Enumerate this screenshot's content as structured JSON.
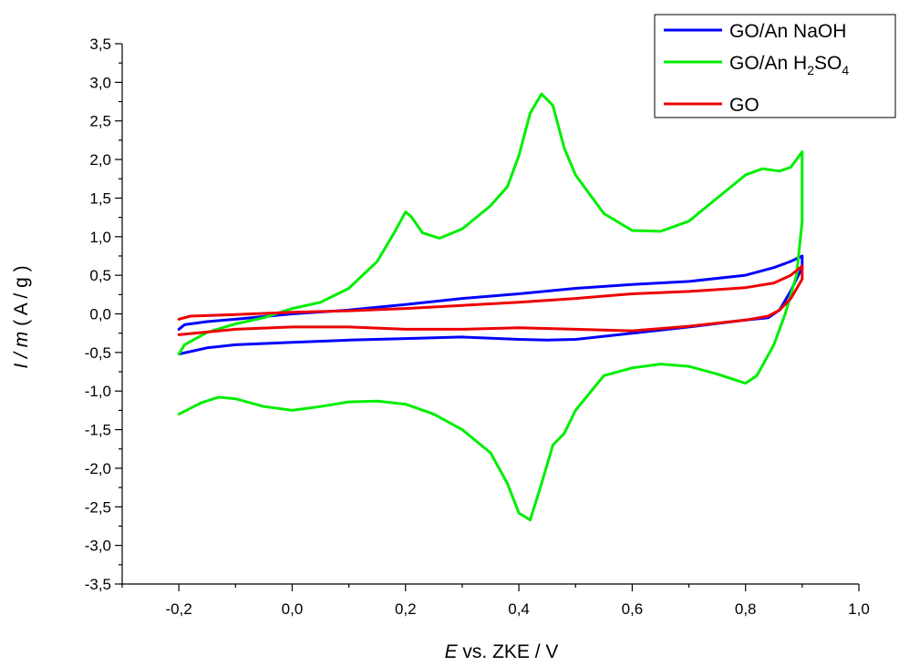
{
  "chart_data": {
    "type": "line",
    "xlabel": {
      "italic": "E",
      "rest": " vs. ZKE / V"
    },
    "ylabel": {
      "italic": "I / m",
      "rest": " ( A / g )"
    },
    "xlim": [
      -0.3,
      1.0
    ],
    "ylim": [
      -3.5,
      3.5
    ],
    "x_ticks": [
      "-0,2",
      "0,0",
      "0,2",
      "0,4",
      "0,6",
      "0,8",
      "1,0"
    ],
    "x_tick_values": [
      -0.2,
      0.0,
      0.2,
      0.4,
      0.6,
      0.8,
      1.0
    ],
    "y_ticks": [
      "3,5",
      "3,0",
      "2,5",
      "2,0",
      "1,5",
      "1,0",
      "0,5",
      "0,0",
      "-0,5",
      "-1,0",
      "-1,5",
      "-2,0",
      "-2,5",
      "-3,0",
      "-3,5"
    ],
    "y_tick_values": [
      3.5,
      3.0,
      2.5,
      2.0,
      1.5,
      1.0,
      0.5,
      0.0,
      -0.5,
      -1.0,
      -1.5,
      -2.0,
      -2.5,
      -3.0,
      -3.5
    ],
    "grid": false,
    "legend_position": "top-right",
    "series": [
      {
        "name": "GO/An NaOH",
        "color": "#0000ff",
        "points": [
          [
            -0.2,
            -0.2
          ],
          [
            -0.19,
            -0.14
          ],
          [
            -0.15,
            -0.1
          ],
          [
            -0.1,
            -0.07
          ],
          [
            0.0,
            0.0
          ],
          [
            0.1,
            0.05
          ],
          [
            0.2,
            0.12
          ],
          [
            0.3,
            0.2
          ],
          [
            0.4,
            0.26
          ],
          [
            0.5,
            0.33
          ],
          [
            0.6,
            0.38
          ],
          [
            0.7,
            0.42
          ],
          [
            0.8,
            0.5
          ],
          [
            0.85,
            0.6
          ],
          [
            0.88,
            0.68
          ],
          [
            0.9,
            0.75
          ],
          [
            0.9,
            0.6
          ],
          [
            0.88,
            0.3
          ],
          [
            0.86,
            0.05
          ],
          [
            0.84,
            -0.05
          ],
          [
            0.8,
            -0.08
          ],
          [
            0.7,
            -0.17
          ],
          [
            0.6,
            -0.25
          ],
          [
            0.5,
            -0.33
          ],
          [
            0.45,
            -0.34
          ],
          [
            0.4,
            -0.33
          ],
          [
            0.3,
            -0.3
          ],
          [
            0.2,
            -0.32
          ],
          [
            0.1,
            -0.34
          ],
          [
            0.0,
            -0.37
          ],
          [
            -0.1,
            -0.4
          ],
          [
            -0.15,
            -0.44
          ],
          [
            -0.2,
            -0.52
          ]
        ]
      },
      {
        "name": "GO/An H2SO4",
        "display_name": {
          "base": "GO/An H",
          "sub1": "2",
          "mid": "SO",
          "sub2": "4"
        },
        "color": "#00ee00",
        "points": [
          [
            -0.2,
            -0.52
          ],
          [
            -0.19,
            -0.4
          ],
          [
            -0.15,
            -0.24
          ],
          [
            -0.1,
            -0.13
          ],
          [
            -0.05,
            -0.05
          ],
          [
            0.0,
            0.07
          ],
          [
            0.05,
            0.15
          ],
          [
            0.1,
            0.33
          ],
          [
            0.15,
            0.68
          ],
          [
            0.18,
            1.05
          ],
          [
            0.2,
            1.32
          ],
          [
            0.21,
            1.26
          ],
          [
            0.23,
            1.05
          ],
          [
            0.26,
            0.98
          ],
          [
            0.3,
            1.1
          ],
          [
            0.35,
            1.4
          ],
          [
            0.38,
            1.65
          ],
          [
            0.4,
            2.05
          ],
          [
            0.42,
            2.6
          ],
          [
            0.44,
            2.85
          ],
          [
            0.46,
            2.7
          ],
          [
            0.48,
            2.15
          ],
          [
            0.5,
            1.8
          ],
          [
            0.55,
            1.3
          ],
          [
            0.6,
            1.08
          ],
          [
            0.65,
            1.07
          ],
          [
            0.7,
            1.2
          ],
          [
            0.75,
            1.5
          ],
          [
            0.8,
            1.8
          ],
          [
            0.83,
            1.88
          ],
          [
            0.86,
            1.85
          ],
          [
            0.88,
            1.9
          ],
          [
            0.9,
            2.1
          ],
          [
            0.9,
            1.2
          ],
          [
            0.89,
            0.5
          ],
          [
            0.87,
            0.0
          ],
          [
            0.85,
            -0.4
          ],
          [
            0.82,
            -0.8
          ],
          [
            0.8,
            -0.9
          ],
          [
            0.75,
            -0.78
          ],
          [
            0.7,
            -0.68
          ],
          [
            0.65,
            -0.65
          ],
          [
            0.6,
            -0.7
          ],
          [
            0.55,
            -0.8
          ],
          [
            0.5,
            -1.25
          ],
          [
            0.48,
            -1.55
          ],
          [
            0.46,
            -1.7
          ],
          [
            0.44,
            -2.2
          ],
          [
            0.42,
            -2.67
          ],
          [
            0.4,
            -2.58
          ],
          [
            0.38,
            -2.2
          ],
          [
            0.35,
            -1.8
          ],
          [
            0.3,
            -1.5
          ],
          [
            0.25,
            -1.3
          ],
          [
            0.2,
            -1.17
          ],
          [
            0.15,
            -1.13
          ],
          [
            0.1,
            -1.14
          ],
          [
            0.05,
            -1.2
          ],
          [
            0.0,
            -1.25
          ],
          [
            -0.05,
            -1.2
          ],
          [
            -0.1,
            -1.1
          ],
          [
            -0.13,
            -1.08
          ],
          [
            -0.16,
            -1.15
          ],
          [
            -0.2,
            -1.3
          ]
        ]
      },
      {
        "name": "GO",
        "color": "#ee0000",
        "points": [
          [
            -0.2,
            -0.07
          ],
          [
            -0.18,
            -0.03
          ],
          [
            -0.1,
            -0.01
          ],
          [
            0.0,
            0.02
          ],
          [
            0.1,
            0.04
          ],
          [
            0.2,
            0.07
          ],
          [
            0.3,
            0.11
          ],
          [
            0.4,
            0.15
          ],
          [
            0.5,
            0.2
          ],
          [
            0.6,
            0.26
          ],
          [
            0.7,
            0.29
          ],
          [
            0.8,
            0.34
          ],
          [
            0.85,
            0.4
          ],
          [
            0.88,
            0.5
          ],
          [
            0.9,
            0.62
          ],
          [
            0.9,
            0.45
          ],
          [
            0.88,
            0.2
          ],
          [
            0.86,
            0.05
          ],
          [
            0.84,
            -0.03
          ],
          [
            0.8,
            -0.08
          ],
          [
            0.7,
            -0.16
          ],
          [
            0.6,
            -0.22
          ],
          [
            0.5,
            -0.2
          ],
          [
            0.4,
            -0.18
          ],
          [
            0.3,
            -0.2
          ],
          [
            0.2,
            -0.2
          ],
          [
            0.1,
            -0.17
          ],
          [
            0.0,
            -0.17
          ],
          [
            -0.1,
            -0.2
          ],
          [
            -0.2,
            -0.27
          ]
        ]
      }
    ]
  }
}
